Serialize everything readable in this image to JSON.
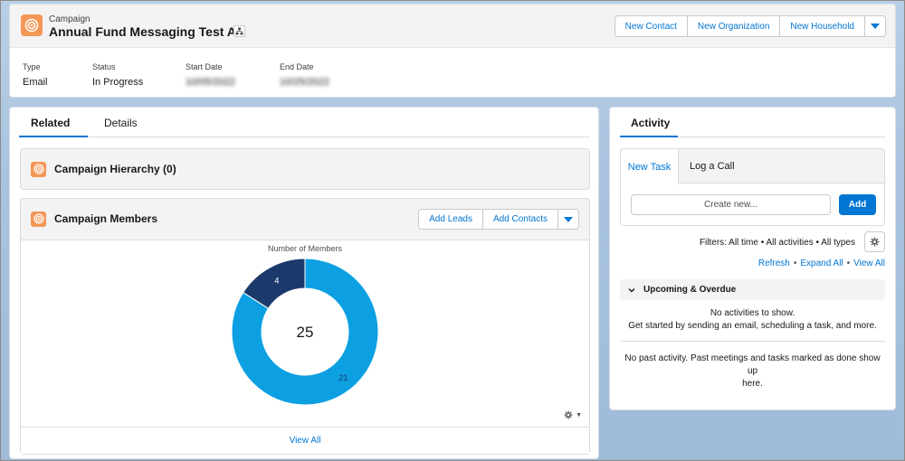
{
  "header": {
    "object_label": "Campaign",
    "title": "Annual Fund Messaging Test A",
    "actions": [
      "New Contact",
      "New Organization",
      "New Household"
    ],
    "fields": [
      {
        "label": "Type",
        "value": "Email"
      },
      {
        "label": "Status",
        "value": "In Progress"
      },
      {
        "label": "Start Date",
        "value": "10/05/2022"
      },
      {
        "label": "End Date",
        "value": "10/25/2022"
      }
    ]
  },
  "left": {
    "tabs": [
      "Related",
      "Details"
    ],
    "hierarchy_title": "Campaign Hierarchy (0)",
    "members_title": "Campaign Members",
    "members_actions": [
      "Add Leads",
      "Add Contacts"
    ],
    "view_all": "View All"
  },
  "chart_data": {
    "type": "donut",
    "title": "Number of Members",
    "total": "25",
    "series": [
      {
        "value": 4,
        "label": "4",
        "color": "#1b3a6b"
      },
      {
        "value": 21,
        "label": "21",
        "color": "#0ca0e2"
      }
    ]
  },
  "activity": {
    "tab": "Activity",
    "composer_tabs": [
      "New Task",
      "Log a Call"
    ],
    "create_placeholder": "Create new...",
    "add_label": "Add",
    "filters": "Filters: All time • All activities • All types",
    "links": [
      "Refresh",
      "Expand All",
      "View All"
    ],
    "upcoming_title": "Upcoming & Overdue",
    "no_activities_1": "No activities to show.",
    "no_activities_2": "Get started by sending an email, scheduling a task, and more.",
    "past_1": "No past activity. Past meetings and tasks marked as done show up",
    "past_2": "here."
  },
  "colors": {
    "brand": "#0176d3",
    "campaign_icon": "#f49756"
  }
}
